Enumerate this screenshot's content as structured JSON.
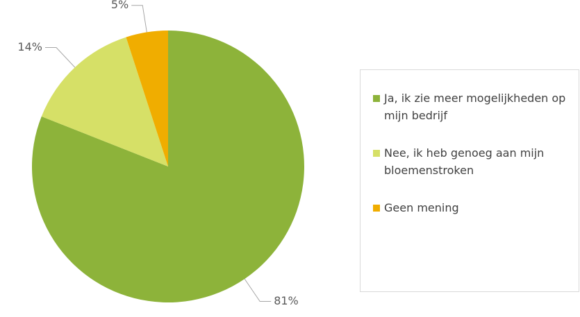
{
  "chart_data": {
    "type": "pie",
    "categories": [
      "Ja, ik zie meer mogelijkheden op mijn bedrijf",
      "Nee, ik heb genoeg aan mijn bloemenstroken",
      "Geen mening"
    ],
    "values": [
      81,
      14,
      5
    ],
    "value_labels": [
      "81%",
      "14%",
      "5%"
    ],
    "colors": [
      "#8db33a",
      "#d6e067",
      "#f0ad00"
    ],
    "legend": "right"
  }
}
